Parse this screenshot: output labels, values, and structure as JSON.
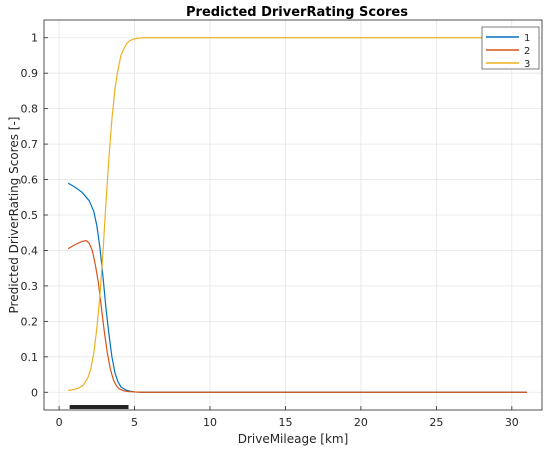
{
  "chart_data": {
    "type": "line",
    "title": "Predicted DriverRating Scores",
    "xlabel": "DriveMileage [km]",
    "ylabel": "Predicted DriverRating Scores [-]",
    "xlim": [
      -1,
      32
    ],
    "ylim": [
      -0.05,
      1.05
    ],
    "xticks": [
      0,
      5,
      10,
      15,
      20,
      25,
      30
    ],
    "yticks": [
      0,
      0.1,
      0.2,
      0.3,
      0.4,
      0.5,
      0.6,
      0.7,
      0.8,
      0.9,
      1
    ],
    "ytick_labels": [
      "0",
      "0.1",
      "0.2",
      "0.3",
      "0.4",
      "0.5",
      "0.6",
      "0.7",
      "0.8",
      "0.9",
      "1"
    ],
    "grid": true,
    "legend_position": "top-right",
    "rug": {
      "from": 0.7,
      "to": 4.6,
      "color": "#222222"
    },
    "series": [
      {
        "name": "1",
        "color": "#0072BD",
        "x": [
          0.6,
          1.0,
          1.5,
          2.0,
          2.3,
          2.5,
          2.7,
          2.9,
          3.1,
          3.3,
          3.5,
          3.7,
          3.9,
          4.1,
          4.4,
          4.7,
          5.0,
          5.5,
          6.0,
          8.0,
          12.0,
          16.0,
          20.0,
          24.0,
          28.0,
          31.0
        ],
        "y": [
          0.59,
          0.58,
          0.565,
          0.54,
          0.51,
          0.47,
          0.41,
          0.33,
          0.24,
          0.165,
          0.1,
          0.055,
          0.03,
          0.015,
          0.007,
          0.003,
          0.001,
          0,
          0,
          0,
          0,
          0,
          0,
          0,
          0,
          0
        ]
      },
      {
        "name": "2",
        "color": "#D95319",
        "x": [
          0.6,
          1.0,
          1.5,
          1.8,
          2.0,
          2.2,
          2.4,
          2.6,
          2.8,
          3.0,
          3.2,
          3.4,
          3.6,
          3.8,
          4.0,
          4.3,
          4.6,
          5.0,
          5.5,
          6.0,
          8.0,
          12.0,
          16.0,
          20.0,
          24.0,
          28.0,
          31.0
        ],
        "y": [
          0.405,
          0.415,
          0.425,
          0.428,
          0.42,
          0.4,
          0.36,
          0.31,
          0.24,
          0.17,
          0.11,
          0.065,
          0.035,
          0.018,
          0.009,
          0.004,
          0.002,
          0.001,
          0,
          0,
          0,
          0,
          0,
          0,
          0,
          0,
          0
        ]
      },
      {
        "name": "3",
        "color": "#EDB120",
        "x": [
          0.6,
          1.0,
          1.3,
          1.6,
          1.9,
          2.1,
          2.3,
          2.5,
          2.7,
          2.9,
          3.1,
          3.3,
          3.5,
          3.7,
          3.9,
          4.1,
          4.3,
          4.5,
          4.7,
          5.0,
          5.3,
          5.7,
          6.0,
          8.0,
          12.0,
          16.0,
          20.0,
          24.0,
          28.0,
          31.0
        ],
        "y": [
          0.005,
          0.008,
          0.012,
          0.02,
          0.04,
          0.065,
          0.11,
          0.18,
          0.27,
          0.39,
          0.53,
          0.66,
          0.77,
          0.855,
          0.91,
          0.95,
          0.97,
          0.985,
          0.992,
          0.997,
          0.999,
          1.0,
          1.0,
          1.0,
          1.0,
          1.0,
          1.0,
          1.0,
          1.0,
          1.0
        ]
      }
    ]
  }
}
